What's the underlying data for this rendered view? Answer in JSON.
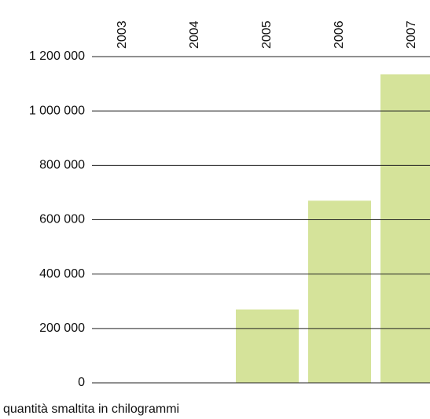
{
  "chart_data": {
    "type": "bar",
    "caption": "quantità smaltita in chilogrammi",
    "categories": [
      "2003",
      "2004",
      "2005",
      "2006",
      "2007"
    ],
    "values": [
      0,
      0,
      270000,
      670000,
      1135000
    ],
    "color": "#d5e39a",
    "ylim": [
      0,
      1200000
    ],
    "yticks": [
      0,
      {
        "value": 200000,
        "label": "200 000"
      },
      {
        "value": 400000,
        "label": "400 000"
      },
      {
        "value": 600000,
        "label": "600 000"
      },
      {
        "value": 800000,
        "label": "800 000"
      },
      {
        "value": 1000000,
        "label": "1 000 000"
      },
      {
        "value": 1200000,
        "label": "1 200 000"
      }
    ],
    "grid": true
  }
}
